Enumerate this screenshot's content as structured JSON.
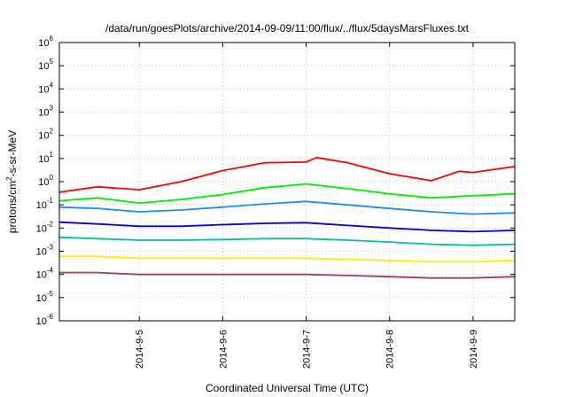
{
  "chart_data": {
    "type": "line",
    "title": "/data/run/goesPlots/archive/2014-09-09/11:00/flux/../flux/5daysMarsFluxes.txt",
    "xlabel": "Coordinated Universal Time (UTC)",
    "ylabel": {
      "pre": "protons/cm",
      "sup": "2",
      "post": "-s-sr-MeV"
    },
    "yscale": "log",
    "ylim": [
      1e-06,
      1000000.0
    ],
    "xlim": [
      "2014-09-04T01:00",
      "2014-09-09T12:00"
    ],
    "grid": true,
    "y_ticks": [
      {
        "base": "10",
        "exp": "-6",
        "value": 1e-06
      },
      {
        "base": "10",
        "exp": "-5",
        "value": 1e-05
      },
      {
        "base": "10",
        "exp": "-4",
        "value": 0.0001
      },
      {
        "base": "10",
        "exp": "-3",
        "value": 0.001
      },
      {
        "base": "10",
        "exp": "-2",
        "value": 0.01
      },
      {
        "base": "10",
        "exp": "-1",
        "value": 0.1
      },
      {
        "base": "10",
        "exp": "0",
        "value": 1
      },
      {
        "base": "10",
        "exp": "1",
        "value": 10
      },
      {
        "base": "10",
        "exp": "2",
        "value": 100
      },
      {
        "base": "10",
        "exp": "3",
        "value": 1000
      },
      {
        "base": "10",
        "exp": "4",
        "value": 10000
      },
      {
        "base": "10",
        "exp": "5",
        "value": 100000
      },
      {
        "base": "10",
        "exp": "6",
        "value": 1000000
      }
    ],
    "x_ticks": [
      {
        "label": "2014-9-5",
        "value": "2014-09-05T00:00"
      },
      {
        "label": "2014-9-6",
        "value": "2014-09-06T00:00"
      },
      {
        "label": "2014-9-7",
        "value": "2014-09-07T00:00"
      },
      {
        "label": "2014-9-8",
        "value": "2014-09-08T00:00"
      },
      {
        "label": "2014-9-9",
        "value": "2014-09-09T00:00"
      }
    ],
    "series": [
      {
        "color": "#ff0000",
        "values": [
          [
            "2014-09-04T01:00",
            0.35
          ],
          [
            "2014-09-04T12:00",
            0.6
          ],
          [
            "2014-09-05T00:00",
            0.45
          ],
          [
            "2014-09-05T12:00",
            1.0
          ],
          [
            "2014-09-06T00:00",
            3.0
          ],
          [
            "2014-09-06T12:00",
            6.5
          ],
          [
            "2014-09-07T00:00",
            7.0
          ],
          [
            "2014-09-07T03:00",
            11.0
          ],
          [
            "2014-09-07T12:00",
            6.5
          ],
          [
            "2014-09-08T00:00",
            2.2
          ],
          [
            "2014-09-08T12:00",
            1.1
          ],
          [
            "2014-09-08T20:00",
            2.8
          ],
          [
            "2014-09-09T00:00",
            2.5
          ],
          [
            "2014-09-09T12:00",
            4.5
          ]
        ]
      },
      {
        "color": "#00ee00",
        "values": [
          [
            "2014-09-04T01:00",
            0.15
          ],
          [
            "2014-09-04T12:00",
            0.2
          ],
          [
            "2014-09-05T00:00",
            0.12
          ],
          [
            "2014-09-05T12:00",
            0.17
          ],
          [
            "2014-09-06T00:00",
            0.28
          ],
          [
            "2014-09-06T12:00",
            0.55
          ],
          [
            "2014-09-07T00:00",
            0.8
          ],
          [
            "2014-09-07T12:00",
            0.5
          ],
          [
            "2014-09-08T00:00",
            0.3
          ],
          [
            "2014-09-08T12:00",
            0.2
          ],
          [
            "2014-09-09T00:00",
            0.25
          ],
          [
            "2014-09-09T12:00",
            0.3
          ]
        ]
      },
      {
        "color": "#1e8cf0",
        "values": [
          [
            "2014-09-04T01:00",
            0.08
          ],
          [
            "2014-09-04T12:00",
            0.07
          ],
          [
            "2014-09-05T00:00",
            0.05
          ],
          [
            "2014-09-05T12:00",
            0.06
          ],
          [
            "2014-09-06T00:00",
            0.08
          ],
          [
            "2014-09-06T12:00",
            0.11
          ],
          [
            "2014-09-07T00:00",
            0.14
          ],
          [
            "2014-09-07T12:00",
            0.1
          ],
          [
            "2014-09-08T00:00",
            0.07
          ],
          [
            "2014-09-08T12:00",
            0.05
          ],
          [
            "2014-09-09T00:00",
            0.04
          ],
          [
            "2014-09-09T12:00",
            0.045
          ]
        ]
      },
      {
        "color": "#0000dd",
        "values": [
          [
            "2014-09-04T01:00",
            0.018
          ],
          [
            "2014-09-04T12:00",
            0.015
          ],
          [
            "2014-09-05T00:00",
            0.012
          ],
          [
            "2014-09-05T12:00",
            0.012
          ],
          [
            "2014-09-06T00:00",
            0.014
          ],
          [
            "2014-09-06T12:00",
            0.016
          ],
          [
            "2014-09-07T00:00",
            0.017
          ],
          [
            "2014-09-07T12:00",
            0.013
          ],
          [
            "2014-09-08T00:00",
            0.01
          ],
          [
            "2014-09-08T12:00",
            0.008
          ],
          [
            "2014-09-09T00:00",
            0.007
          ],
          [
            "2014-09-09T12:00",
            0.008
          ]
        ]
      },
      {
        "color": "#00c0a0",
        "values": [
          [
            "2014-09-04T01:00",
            0.004
          ],
          [
            "2014-09-04T12:00",
            0.0035
          ],
          [
            "2014-09-05T00:00",
            0.003
          ],
          [
            "2014-09-05T12:00",
            0.003
          ],
          [
            "2014-09-06T00:00",
            0.0032
          ],
          [
            "2014-09-06T12:00",
            0.0035
          ],
          [
            "2014-09-07T00:00",
            0.0035
          ],
          [
            "2014-09-07T12:00",
            0.003
          ],
          [
            "2014-09-08T00:00",
            0.0025
          ],
          [
            "2014-09-08T12:00",
            0.002
          ],
          [
            "2014-09-09T00:00",
            0.0018
          ],
          [
            "2014-09-09T12:00",
            0.002
          ]
        ]
      },
      {
        "color": "#ffee00",
        "values": [
          [
            "2014-09-04T01:00",
            0.0006
          ],
          [
            "2014-09-04T12:00",
            0.0006
          ],
          [
            "2014-09-05T00:00",
            0.0005
          ],
          [
            "2014-09-05T12:00",
            0.0005
          ],
          [
            "2014-09-06T00:00",
            0.0005
          ],
          [
            "2014-09-06T12:00",
            0.0005
          ],
          [
            "2014-09-07T00:00",
            0.0005
          ],
          [
            "2014-09-07T12:00",
            0.00045
          ],
          [
            "2014-09-08T00:00",
            0.0004
          ],
          [
            "2014-09-08T12:00",
            0.00035
          ],
          [
            "2014-09-09T00:00",
            0.00035
          ],
          [
            "2014-09-09T12:00",
            0.0004
          ]
        ]
      },
      {
        "color": "#9e3a6c",
        "values": [
          [
            "2014-09-04T01:00",
            0.00012
          ],
          [
            "2014-09-04T12:00",
            0.00012
          ],
          [
            "2014-09-05T00:00",
            0.0001
          ],
          [
            "2014-09-05T12:00",
            0.0001
          ],
          [
            "2014-09-06T00:00",
            0.0001
          ],
          [
            "2014-09-06T12:00",
            0.0001
          ],
          [
            "2014-09-07T00:00",
            0.0001
          ],
          [
            "2014-09-07T12:00",
            9e-05
          ],
          [
            "2014-09-08T00:00",
            8e-05
          ],
          [
            "2014-09-08T12:00",
            7e-05
          ],
          [
            "2014-09-09T00:00",
            7e-05
          ],
          [
            "2014-09-09T12:00",
            8e-05
          ]
        ]
      }
    ]
  }
}
